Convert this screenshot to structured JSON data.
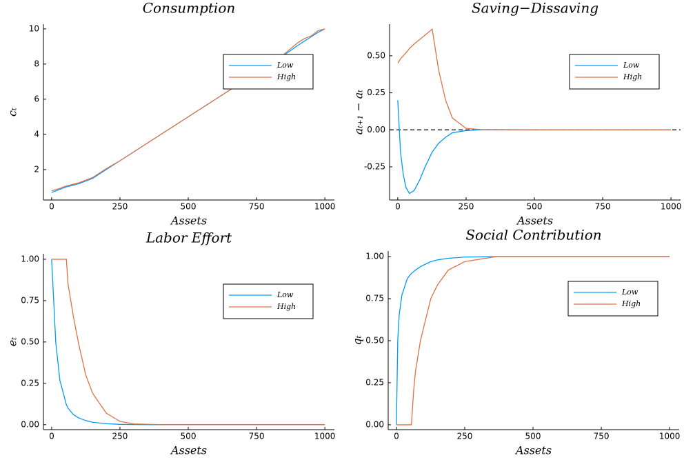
{
  "chart_data": [
    {
      "type": "line",
      "title": "Consumption",
      "xlabel": "Assets",
      "ylabel": "cₜ",
      "x": [
        0,
        25,
        50,
        75,
        100,
        125,
        150,
        175,
        200,
        250,
        300,
        400,
        500,
        600,
        700,
        800,
        850,
        900,
        925,
        950,
        975,
        1000
      ],
      "series": [
        {
          "name": "Low",
          "color": "#009af9",
          "values": [
            0.7,
            0.85,
            1.0,
            1.1,
            1.2,
            1.35,
            1.5,
            1.75,
            2.0,
            2.5,
            3.0,
            4.0,
            5.0,
            6.0,
            7.0,
            8.0,
            8.5,
            9.05,
            9.3,
            9.55,
            9.8,
            10.0
          ]
        },
        {
          "name": "High",
          "color": "#e26f46",
          "values": [
            0.8,
            0.9,
            1.05,
            1.15,
            1.25,
            1.4,
            1.55,
            1.8,
            2.05,
            2.5,
            3.0,
            4.0,
            5.0,
            6.0,
            7.0,
            8.0,
            8.55,
            9.2,
            9.45,
            9.6,
            9.9,
            10.0
          ]
        }
      ],
      "xlim": [
        -30,
        1035
      ],
      "ylim": [
        0.27,
        10.27
      ],
      "xticks": [
        0,
        250,
        500,
        750,
        1000
      ],
      "yticks": [
        2,
        4,
        6,
        8,
        10
      ],
      "legend": "top-right"
    },
    {
      "type": "line",
      "title": "Saving−Dissaving",
      "xlabel": "Assets",
      "ylabel": "aₜ₊₁ − aₜ",
      "x": [
        0,
        10,
        20,
        30,
        43,
        60,
        80,
        100,
        126,
        150,
        175,
        200,
        250,
        300,
        500,
        750,
        1000
      ],
      "series": [
        {
          "name": "Low",
          "color": "#009af9",
          "values": [
            0.2,
            -0.15,
            -0.3,
            -0.39,
            -0.43,
            -0.41,
            -0.34,
            -0.25,
            -0.15,
            -0.09,
            -0.05,
            -0.02,
            -0.005,
            0,
            0,
            0,
            0
          ]
        },
        {
          "name": "High",
          "color": "#e26f46",
          "values": [
            0.45,
            0.48,
            0.5,
            0.52,
            0.55,
            0.58,
            0.61,
            0.64,
            0.68,
            0.4,
            0.2,
            0.08,
            0.01,
            0.002,
            0,
            0,
            0
          ]
        }
      ],
      "hline": 0,
      "xlim": [
        -30,
        1035
      ],
      "ylim": [
        -0.474,
        0.714
      ],
      "xticks": [
        0,
        250,
        500,
        750,
        1000
      ],
      "yticks": [
        {
          "value": -0.25,
          "label": "-0.25"
        },
        {
          "value": 0,
          "label": "0.00"
        },
        {
          "value": 0.25,
          "label": "0.25"
        },
        {
          "value": 0.5,
          "label": "0.50"
        }
      ],
      "legend": "top-right"
    },
    {
      "type": "line",
      "title": "Labor Effort",
      "xlabel": "Assets",
      "ylabel": "eₜ",
      "x": [
        0,
        15,
        30,
        54,
        60,
        80,
        100,
        125,
        150,
        200,
        250,
        300,
        400,
        500,
        750,
        1000
      ],
      "series": [
        {
          "name": "Low",
          "color": "#009af9",
          "values": [
            1,
            0.5,
            0.27,
            0.12,
            0.1,
            0.06,
            0.04,
            0.025,
            0.015,
            0.006,
            0.002,
            0.001,
            0,
            0,
            0,
            0
          ]
        },
        {
          "name": "High",
          "color": "#e26f46",
          "values": [
            1,
            1,
            1,
            1,
            0.85,
            0.65,
            0.48,
            0.3,
            0.19,
            0.07,
            0.02,
            0.005,
            0,
            0,
            0,
            0
          ]
        }
      ],
      "xlim": [
        -30,
        1035
      ],
      "ylim": [
        -0.03,
        1.033
      ],
      "xticks": [
        0,
        250,
        500,
        750,
        1000
      ],
      "yticks": [
        {
          "value": 0,
          "label": "0.00"
        },
        {
          "value": 0.25,
          "label": "0.25"
        },
        {
          "value": 0.5,
          "label": "0.50"
        },
        {
          "value": 0.75,
          "label": "0.75"
        },
        {
          "value": 1,
          "label": "1.00"
        }
      ],
      "legend": "top-right"
    },
    {
      "type": "line",
      "title": "Social Contribution",
      "xlabel": "Assets",
      "ylabel": "qₜ",
      "x": [
        0,
        5,
        10,
        20,
        40,
        55,
        63,
        70,
        88,
        100,
        126,
        150,
        190,
        250,
        365,
        500,
        1000
      ],
      "series": [
        {
          "name": "Low",
          "color": "#009af9",
          "values": [
            0,
            0.5,
            0.65,
            0.77,
            0.87,
            0.9,
            0.91,
            0.92,
            0.94,
            0.95,
            0.97,
            0.98,
            0.99,
            0.997,
            1,
            1,
            1
          ]
        },
        {
          "name": "High",
          "color": "#e26f46",
          "values": [
            0,
            0,
            0,
            0,
            0,
            0,
            0.2,
            0.32,
            0.5,
            0.58,
            0.75,
            0.83,
            0.92,
            0.97,
            1,
            1,
            1
          ]
        }
      ],
      "xlim": [
        -30,
        1035
      ],
      "ylim": [
        -0.029,
        1.033
      ],
      "xticks": [
        0,
        250,
        500,
        750,
        1000
      ],
      "yticks": [
        {
          "value": 0,
          "label": "0.00"
        },
        {
          "value": 0.25,
          "label": "0.25"
        },
        {
          "value": 0.5,
          "label": "0.50"
        },
        {
          "value": 0.75,
          "label": "0.75"
        },
        {
          "value": 1,
          "label": "1.00"
        }
      ],
      "legend": "top-right"
    }
  ]
}
